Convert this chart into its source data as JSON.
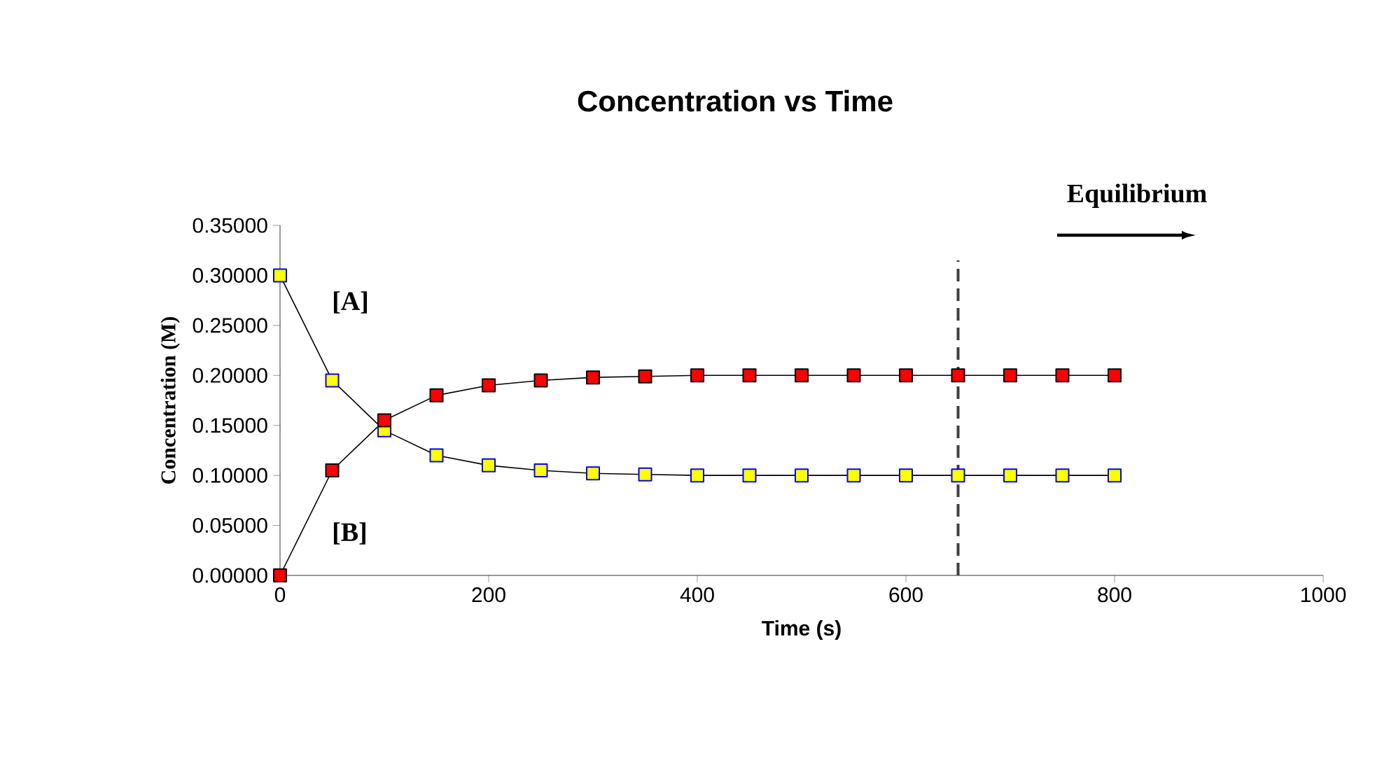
{
  "chart_data": {
    "type": "line",
    "title": "Concentration vs Time",
    "xlabel": "Time (s)",
    "ylabel": "Concentration (M)",
    "x": [
      0,
      50,
      100,
      150,
      200,
      250,
      300,
      350,
      400,
      450,
      500,
      550,
      600,
      650,
      700,
      750,
      800
    ],
    "series": [
      {
        "name": "[A]",
        "color": "#ffff00",
        "values": [
          0.3,
          0.195,
          0.145,
          0.12,
          0.11,
          0.105,
          0.102,
          0.101,
          0.1,
          0.1,
          0.1,
          0.1,
          0.1,
          0.1,
          0.1,
          0.1,
          0.1
        ]
      },
      {
        "name": "[B]",
        "color": "#ff0000",
        "values": [
          0.0,
          0.105,
          0.155,
          0.18,
          0.19,
          0.195,
          0.198,
          0.199,
          0.2,
          0.2,
          0.2,
          0.2,
          0.2,
          0.2,
          0.2,
          0.2,
          0.2
        ]
      }
    ],
    "xlim": [
      0,
      1000
    ],
    "xticks": [
      0,
      200,
      400,
      600,
      800,
      1000
    ],
    "ylim": [
      0,
      0.35
    ],
    "yticks": [
      {
        "value": 0,
        "label": "0.00000"
      },
      {
        "value": 0.05,
        "label": "0.05000"
      },
      {
        "value": 0.1,
        "label": "0.10000"
      },
      {
        "value": 0.15,
        "label": "0.15000"
      },
      {
        "value": 0.2,
        "label": "0.20000"
      },
      {
        "value": 0.25,
        "label": "0.25000"
      },
      {
        "value": 0.3,
        "label": "0.30000"
      },
      {
        "value": 0.35,
        "label": "0.35000"
      }
    ],
    "ref_lines": [
      {
        "axis": "x",
        "value": 650,
        "color": "#404040",
        "line_style": "dashed"
      }
    ],
    "annotations": [
      "Equilibrium"
    ],
    "marker": "square",
    "line_style": "solid",
    "grid": false,
    "legend": false
  }
}
